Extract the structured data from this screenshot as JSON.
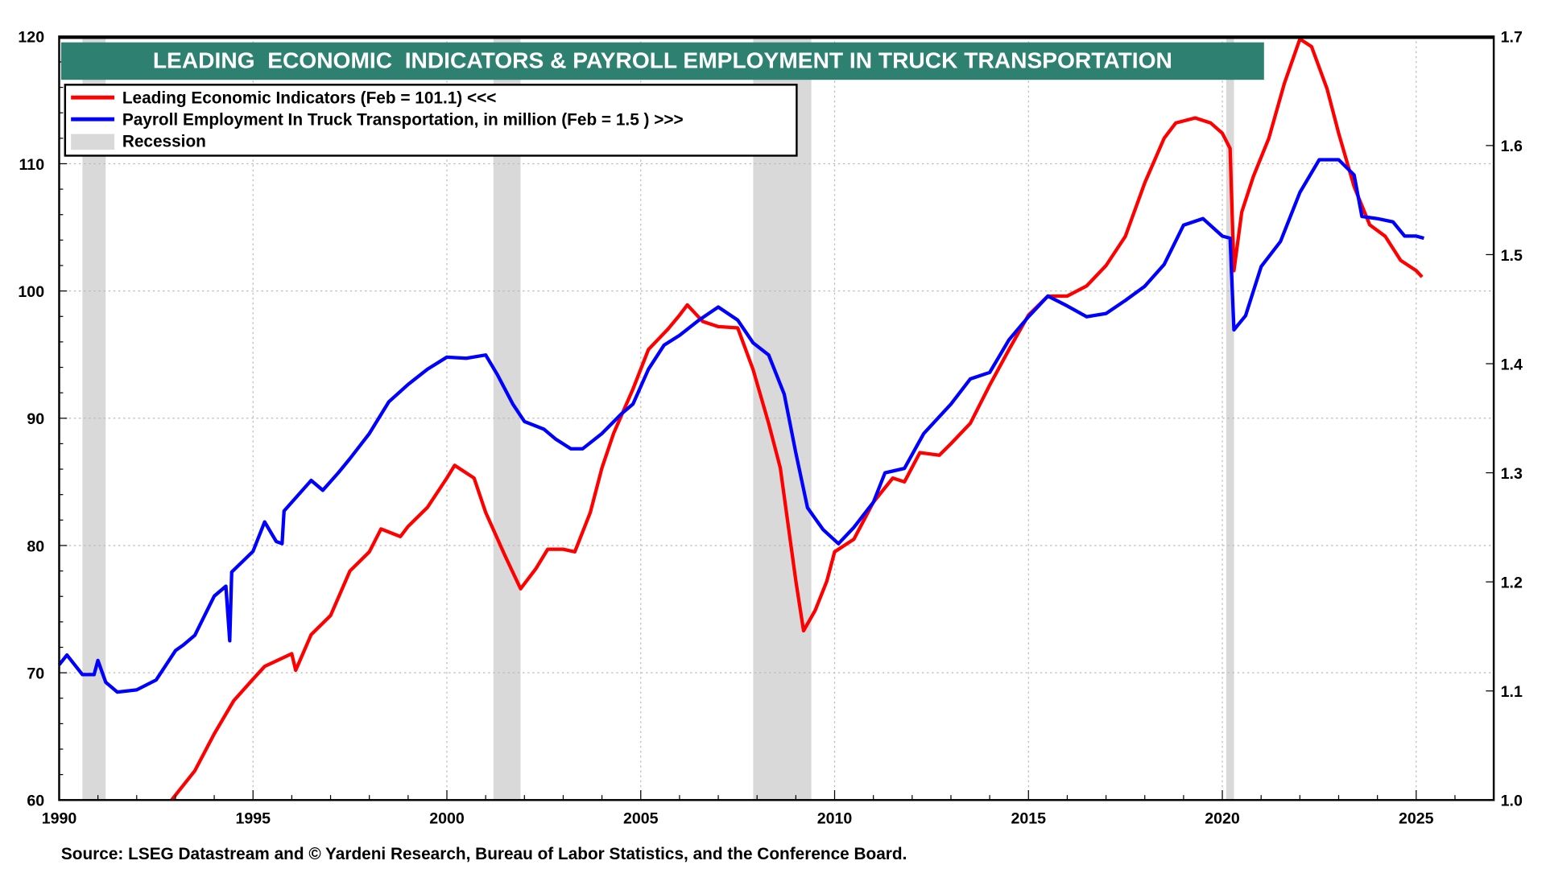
{
  "chart_data": {
    "type": "line",
    "title": "LEADING  ECONOMIC  INDICATORS & PAYROLL EMPLOYMENT IN TRUCK TRANSPORTATION",
    "source": "Source: LSEG Datastream and © Yardeni Research, Bureau of Labor Statistics, and the Conference Board.",
    "xlim": [
      1990,
      2027
    ],
    "x_ticks": [
      "1990",
      "1995",
      "2000",
      "2005",
      "2010",
      "2015",
      "2020",
      "2025"
    ],
    "y_left": {
      "lim": [
        60,
        120
      ],
      "ticks": [
        "60",
        "70",
        "80",
        "90",
        "100",
        "110",
        "120"
      ]
    },
    "y_right": {
      "lim": [
        1.0,
        1.7
      ],
      "ticks": [
        "1.0",
        "1.1",
        "1.2",
        "1.3",
        "1.4",
        "1.5",
        "1.6",
        "1.7"
      ]
    },
    "grid": true,
    "legend_position": "top-left",
    "legend": [
      {
        "label": "Leading Economic Indicators (Feb = 101.1) <<<",
        "color": "#ff0000",
        "kind": "line"
      },
      {
        "label": "Payroll Employment In Truck Transportation, in million (Feb = 1.5 ) >>>",
        "color": "#0000ff",
        "kind": "line"
      },
      {
        "label": "Recession",
        "color": "#d9d9d9",
        "kind": "area"
      }
    ],
    "recessions": [
      [
        1990.6,
        1991.2
      ],
      [
        2001.2,
        2001.9
      ],
      [
        2007.9,
        2009.4
      ],
      [
        2020.1,
        2020.3
      ]
    ],
    "series": [
      {
        "name": "Leading Economic Indicators (Feb = 101.1) <<<",
        "axis": "left",
        "color": "#ff0000",
        "points": [
          [
            1992.9,
            60
          ],
          [
            1993.5,
            62.3
          ],
          [
            1994.0,
            65.2
          ],
          [
            1994.5,
            67.8
          ],
          [
            1995.0,
            69.5
          ],
          [
            1995.3,
            70.5
          ],
          [
            1996.0,
            71.5
          ],
          [
            1996.1,
            70.2
          ],
          [
            1996.5,
            73
          ],
          [
            1997.0,
            74.5
          ],
          [
            1997.5,
            78
          ],
          [
            1998.0,
            79.5
          ],
          [
            1998.3,
            81.3
          ],
          [
            1998.8,
            80.7
          ],
          [
            1999.0,
            81.5
          ],
          [
            1999.5,
            83
          ],
          [
            2000.0,
            85.3
          ],
          [
            2000.2,
            86.3
          ],
          [
            2000.7,
            85.3
          ],
          [
            2001.0,
            82.6
          ],
          [
            2001.5,
            79.2
          ],
          [
            2001.9,
            76.6
          ],
          [
            2002.3,
            78.2
          ],
          [
            2002.6,
            79.7
          ],
          [
            2003.0,
            79.7
          ],
          [
            2003.3,
            79.5
          ],
          [
            2003.7,
            82.6
          ],
          [
            2004.0,
            86.1
          ],
          [
            2004.3,
            88.8
          ],
          [
            2004.8,
            92.3
          ],
          [
            2005.2,
            95.4
          ],
          [
            2005.7,
            97
          ],
          [
            2006.0,
            98.1
          ],
          [
            2006.2,
            98.9
          ],
          [
            2006.6,
            97.6
          ],
          [
            2007.0,
            97.2
          ],
          [
            2007.5,
            97.1
          ],
          [
            2007.9,
            93.8
          ],
          [
            2008.3,
            89.6
          ],
          [
            2008.6,
            86.1
          ],
          [
            2009.0,
            77.2
          ],
          [
            2009.2,
            73.3
          ],
          [
            2009.5,
            74.9
          ],
          [
            2009.8,
            77.2
          ],
          [
            2010.0,
            79.5
          ],
          [
            2010.5,
            80.5
          ],
          [
            2011.0,
            83.4
          ],
          [
            2011.5,
            85.3
          ],
          [
            2011.8,
            85
          ],
          [
            2012.2,
            87.3
          ],
          [
            2012.7,
            87.1
          ],
          [
            2013.0,
            88
          ],
          [
            2013.5,
            89.6
          ],
          [
            2014.0,
            92.6
          ],
          [
            2014.5,
            95.4
          ],
          [
            2015.0,
            98.1
          ],
          [
            2015.5,
            99.6
          ],
          [
            2016.0,
            99.6
          ],
          [
            2016.5,
            100.4
          ],
          [
            2017.0,
            102
          ],
          [
            2017.5,
            104.3
          ],
          [
            2018.0,
            108.5
          ],
          [
            2018.5,
            112
          ],
          [
            2018.8,
            113.2
          ],
          [
            2019.3,
            113.6
          ],
          [
            2019.7,
            113.2
          ],
          [
            2020.0,
            112.4
          ],
          [
            2020.2,
            111.2
          ],
          [
            2020.3,
            101.6
          ],
          [
            2020.5,
            106.2
          ],
          [
            2020.8,
            109
          ],
          [
            2021.2,
            112
          ],
          [
            2021.6,
            116.3
          ],
          [
            2022.0,
            119.8
          ],
          [
            2022.3,
            119.2
          ],
          [
            2022.7,
            115.9
          ],
          [
            2023.0,
            112.4
          ],
          [
            2023.4,
            108.2
          ],
          [
            2023.8,
            105.2
          ],
          [
            2024.2,
            104.3
          ],
          [
            2024.6,
            102.4
          ],
          [
            2025.0,
            101.6
          ],
          [
            2025.15,
            101.1
          ]
        ]
      },
      {
        "name": "Payroll Employment In Truck Transportation, in million (Feb = 1.5 ) >>>",
        "axis": "right",
        "color": "#0000ff",
        "points": [
          [
            1990.0,
            1.124
          ],
          [
            1990.2,
            1.133
          ],
          [
            1990.6,
            1.115
          ],
          [
            1990.9,
            1.115
          ],
          [
            1991.0,
            1.128
          ],
          [
            1991.2,
            1.108
          ],
          [
            1991.5,
            1.099
          ],
          [
            1992.0,
            1.101
          ],
          [
            1992.5,
            1.11
          ],
          [
            1993.0,
            1.137
          ],
          [
            1993.2,
            1.142
          ],
          [
            1993.5,
            1.151
          ],
          [
            1994.0,
            1.187
          ],
          [
            1994.3,
            1.196
          ],
          [
            1994.4,
            1.146
          ],
          [
            1994.45,
            1.209
          ],
          [
            1995.0,
            1.228
          ],
          [
            1995.3,
            1.255
          ],
          [
            1995.6,
            1.237
          ],
          [
            1995.75,
            1.235
          ],
          [
            1995.8,
            1.265
          ],
          [
            1996.5,
            1.293
          ],
          [
            1996.8,
            1.284
          ],
          [
            1997.2,
            1.3
          ],
          [
            1997.5,
            1.313
          ],
          [
            1998.0,
            1.336
          ],
          [
            1998.5,
            1.365
          ],
          [
            1999.0,
            1.381
          ],
          [
            1999.5,
            1.395
          ],
          [
            2000.0,
            1.406
          ],
          [
            2000.5,
            1.405
          ],
          [
            2001.0,
            1.408
          ],
          [
            2001.3,
            1.39
          ],
          [
            2001.7,
            1.363
          ],
          [
            2002.0,
            1.347
          ],
          [
            2002.5,
            1.34
          ],
          [
            2002.8,
            1.331
          ],
          [
            2003.2,
            1.322
          ],
          [
            2003.5,
            1.322
          ],
          [
            2004.0,
            1.336
          ],
          [
            2004.5,
            1.354
          ],
          [
            2004.8,
            1.363
          ],
          [
            2005.2,
            1.395
          ],
          [
            2005.6,
            1.417
          ],
          [
            2006.0,
            1.426
          ],
          [
            2006.5,
            1.44
          ],
          [
            2007.0,
            1.452
          ],
          [
            2007.5,
            1.44
          ],
          [
            2007.9,
            1.419
          ],
          [
            2008.3,
            1.408
          ],
          [
            2008.7,
            1.372
          ],
          [
            2009.0,
            1.318
          ],
          [
            2009.3,
            1.268
          ],
          [
            2009.7,
            1.248
          ],
          [
            2010.1,
            1.235
          ],
          [
            2010.5,
            1.25
          ],
          [
            2011.0,
            1.273
          ],
          [
            2011.3,
            1.3
          ],
          [
            2011.8,
            1.304
          ],
          [
            2012.3,
            1.336
          ],
          [
            2013.0,
            1.363
          ],
          [
            2013.5,
            1.386
          ],
          [
            2014.0,
            1.392
          ],
          [
            2014.5,
            1.422
          ],
          [
            2015.0,
            1.443
          ],
          [
            2015.5,
            1.462
          ],
          [
            2016.0,
            1.453
          ],
          [
            2016.5,
            1.443
          ],
          [
            2017.0,
            1.446
          ],
          [
            2017.5,
            1.458
          ],
          [
            2018.0,
            1.471
          ],
          [
            2018.5,
            1.491
          ],
          [
            2019.0,
            1.527
          ],
          [
            2019.5,
            1.533
          ],
          [
            2020.0,
            1.517
          ],
          [
            2020.2,
            1.515
          ],
          [
            2020.3,
            1.431
          ],
          [
            2020.6,
            1.444
          ],
          [
            2021.0,
            1.489
          ],
          [
            2021.5,
            1.512
          ],
          [
            2022.0,
            1.557
          ],
          [
            2022.5,
            1.587
          ],
          [
            2023.0,
            1.587
          ],
          [
            2023.4,
            1.573
          ],
          [
            2023.6,
            1.535
          ],
          [
            2024.0,
            1.533
          ],
          [
            2024.4,
            1.53
          ],
          [
            2024.7,
            1.517
          ],
          [
            2025.0,
            1.517
          ],
          [
            2025.2,
            1.515
          ]
        ]
      }
    ]
  }
}
